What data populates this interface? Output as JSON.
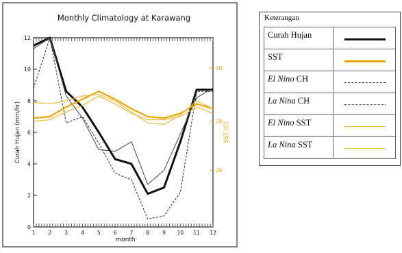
{
  "chart_data": {
    "type": "line",
    "title": "Monthly Climatology at Karawang",
    "xlabel": "month",
    "ylabel_left": "Curah Hujan (mm/hr)",
    "ylabel_right": "SST (C)",
    "x": [
      1,
      2,
      3,
      4,
      5,
      6,
      7,
      8,
      9,
      10,
      11,
      12
    ],
    "xlim": [
      1,
      12
    ],
    "ylim_left": [
      0,
      12
    ],
    "yticks_left": [
      0,
      2,
      4,
      6,
      8,
      10,
      12
    ],
    "yticks_right": [
      "26",
      "28",
      "30"
    ],
    "series": [
      {
        "name": "Curah Hujan",
        "axis": "left",
        "values": [
          11.5,
          12.0,
          8.6,
          7.6,
          6.0,
          4.3,
          4.0,
          2.1,
          2.5,
          5.4,
          8.7,
          8.7
        ],
        "color": "#111111",
        "width": 3,
        "dash": "none"
      },
      {
        "name": "El Nino CH",
        "axis": "left",
        "values": [
          8.8,
          12.0,
          6.6,
          7.0,
          5.3,
          3.4,
          3.0,
          0.5,
          0.7,
          2.2,
          8.6,
          8.6
        ],
        "color": "#222222",
        "width": 1,
        "dash": "3,2"
      },
      {
        "name": "La Nina CH",
        "axis": "left",
        "values": [
          11.3,
          12.0,
          8.3,
          6.9,
          4.9,
          4.8,
          5.4,
          2.7,
          3.6,
          5.9,
          8.2,
          8.8
        ],
        "color": "#444444",
        "width": 1,
        "dash": "none"
      },
      {
        "name": "SST",
        "axis": "left",
        "values": [
          6.9,
          7.0,
          7.6,
          8.1,
          8.6,
          8.1,
          7.5,
          7.0,
          6.9,
          7.2,
          7.8,
          7.5
        ],
        "color": "#e8a400",
        "width": 2.2,
        "dash": "none"
      },
      {
        "name": "El Nino SST",
        "axis": "left",
        "values": [
          7.9,
          7.8,
          8.0,
          8.3,
          8.4,
          8.0,
          7.3,
          6.6,
          6.5,
          7.1,
          8.0,
          7.5
        ],
        "color": "#f0b840",
        "width": 1.2,
        "dash": "none"
      },
      {
        "name": "La Nina SST",
        "axis": "left",
        "values": [
          6.7,
          6.8,
          7.3,
          7.7,
          8.3,
          7.8,
          7.2,
          6.8,
          6.8,
          7.0,
          7.6,
          7.2
        ],
        "color": "#f0b840",
        "width": 1.2,
        "dash": "none"
      }
    ]
  },
  "legend": {
    "heading": "Keterangan",
    "items": [
      {
        "label": "Curah Hujan",
        "italic_part": "",
        "rest": "Curah Hujan",
        "color": "#111111",
        "thickness": "3px",
        "style": "solid"
      },
      {
        "label": "SST",
        "italic_part": "",
        "rest": "SST",
        "color": "#e8a400",
        "thickness": "3px",
        "style": "solid"
      },
      {
        "label": "El Nino CH",
        "italic_part": "El Nino",
        "rest": " CH",
        "color": "#333333",
        "thickness": "1px",
        "style": "dashed"
      },
      {
        "label": "La Nina CH",
        "italic_part": "La Nina",
        "rest": " CH",
        "color": "#333333",
        "thickness": "1px",
        "style": "dotted"
      },
      {
        "label": "El Nino SST",
        "italic_part": "El Nino",
        "rest": "  SST",
        "color": "#f0b840",
        "thickness": "1px",
        "style": "solid"
      },
      {
        "label": "La Nina SST",
        "italic_part": "La Nina",
        "rest": " SST",
        "color": "#f0b840",
        "thickness": "1px",
        "style": "solid"
      }
    ]
  }
}
